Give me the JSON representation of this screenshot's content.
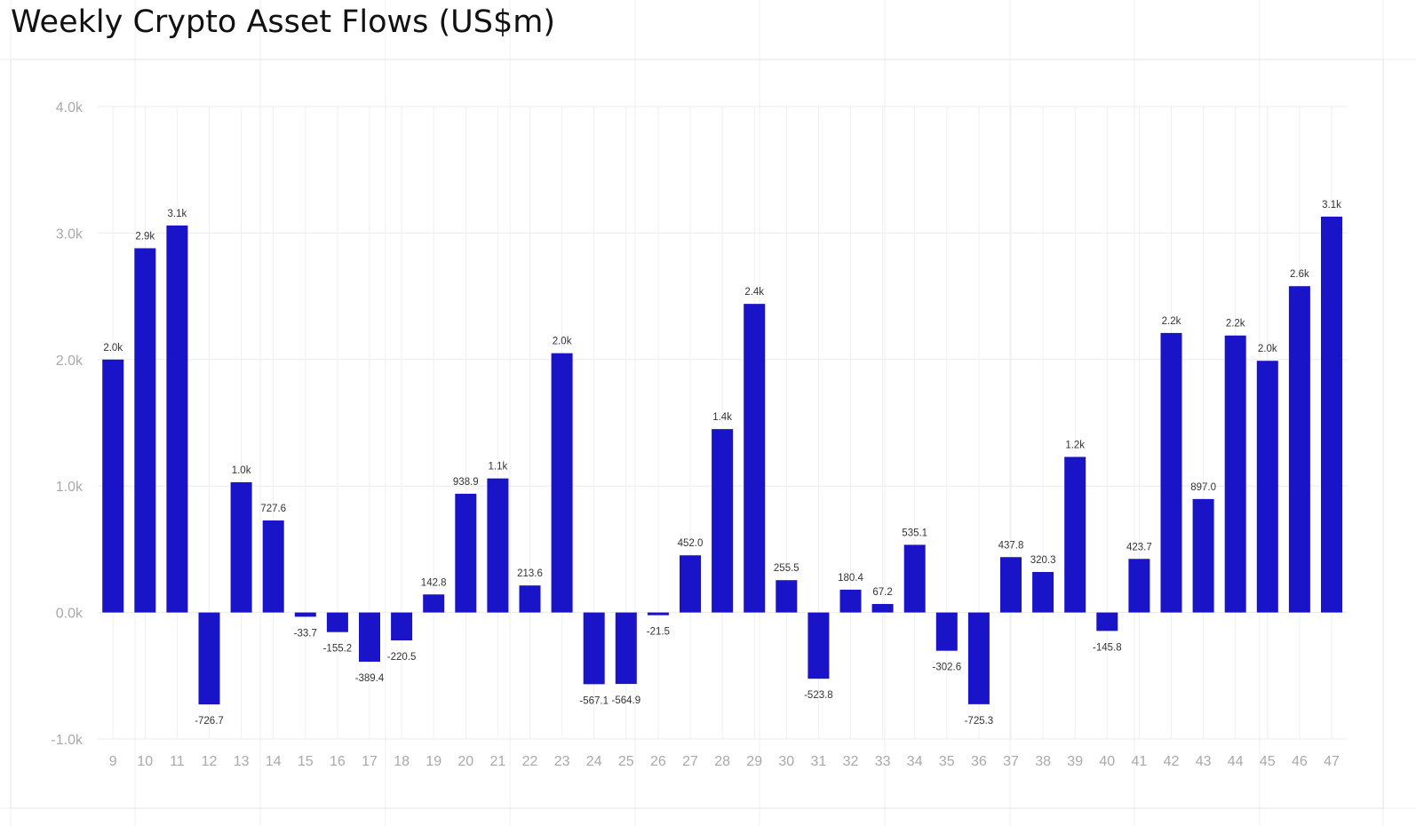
{
  "chart_data": {
    "type": "bar",
    "title": "Weekly Crypto Asset Flows (US$m)",
    "xlabel": "",
    "ylabel": "",
    "ylim": [
      -1000,
      4000
    ],
    "y_ticks": [
      -1000,
      0,
      1000,
      2000,
      3000,
      4000
    ],
    "y_tick_labels": [
      "-1.0k",
      "0.0k",
      "1.0k",
      "2.0k",
      "3.0k",
      "4.0k"
    ],
    "grid": true,
    "legend": "none",
    "bar_color": "#1a14c8",
    "categories": [
      "9",
      "10",
      "11",
      "12",
      "13",
      "14",
      "15",
      "16",
      "17",
      "18",
      "19",
      "20",
      "21",
      "22",
      "23",
      "24",
      "25",
      "26",
      "27",
      "28",
      "29",
      "30",
      "31",
      "32",
      "33",
      "34",
      "35",
      "36",
      "37",
      "38",
      "39",
      "40",
      "41",
      "42",
      "43",
      "44",
      "45",
      "46",
      "47"
    ],
    "values": [
      2000,
      2880,
      3060,
      -726.7,
      1030,
      727.6,
      -33.7,
      -155.2,
      -389.4,
      -220.5,
      142.8,
      938.9,
      1060,
      213.6,
      2050,
      -567.1,
      -564.9,
      -21.5,
      452.0,
      1450,
      2440,
      255.5,
      -523.8,
      180.4,
      67.2,
      535.1,
      -302.6,
      -725.3,
      437.8,
      320.3,
      1230,
      -145.8,
      423.7,
      2210,
      897.0,
      2190,
      1990,
      2580,
      3130
    ],
    "value_labels": [
      "2.0k",
      "2.9k",
      "3.1k",
      "-726.7",
      "1.0k",
      "727.6",
      "-33.7",
      "-155.2",
      "-389.4",
      "-220.5",
      "142.8",
      "938.9",
      "1.1k",
      "213.6",
      "2.0k",
      "-567.1",
      "-564.9",
      "-21.5",
      "452.0",
      "1.4k",
      "2.4k",
      "255.5",
      "-523.8",
      "180.4",
      "67.2",
      "535.1",
      "-302.6",
      "-725.3",
      "437.8",
      "320.3",
      "1.2k",
      "-145.8",
      "423.7",
      "2.2k",
      "897.0",
      "2.2k",
      "2.0k",
      "2.6k",
      "3.1k"
    ]
  }
}
